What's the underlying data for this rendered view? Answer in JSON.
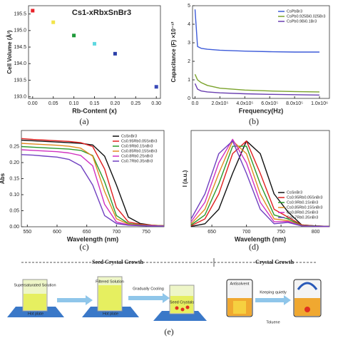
{
  "chart_data": [
    {
      "type": "scatter",
      "title": "Cs1-xRbxSnBr3",
      "xlabel": "Rb-Content (x)",
      "ylabel": "Cell Volume (Å³)",
      "x": [
        0.0,
        0.05,
        0.1,
        0.15,
        0.2,
        0.3
      ],
      "values": [
        195.6,
        195.25,
        194.85,
        194.6,
        194.3,
        193.3
      ],
      "colors": [
        "#e8232a",
        "#f2e44a",
        "#1f9a3a",
        "#5fd8e0",
        "#2a3fa8",
        "#3a4ab8"
      ],
      "xlim": [
        -0.01,
        0.31
      ],
      "ylim": [
        192.95,
        195.75
      ],
      "xticks": [
        {
          "value": 0,
          "label": "0.00"
        },
        0.05,
        {
          "value": 0.1,
          "label": "0.10"
        },
        0.15,
        {
          "value": 0.2,
          "label": "0.20"
        },
        0.25,
        {
          "value": 0.3,
          "label": "0.30"
        }
      ],
      "yticks": [
        {
          "value": 193,
          "label": "193.0"
        },
        193.5,
        {
          "value": 194,
          "label": "194.0"
        },
        194.5,
        {
          "value": 195,
          "label": "195.0"
        },
        195.5
      ]
    },
    {
      "type": "line",
      "xlabel": "Frequency(Hz)",
      "ylabel": "Capacitance (F) ×10⁻¹²",
      "legend": "upper right",
      "x": [
        0,
        20000,
        50000,
        100000,
        200000,
        400000,
        600000,
        800000,
        1000000
      ],
      "series": [
        {
          "name": "CsPbBr3",
          "color": "#3d5bd9",
          "values": [
            4.8,
            2.8,
            2.7,
            2.65,
            2.6,
            2.55,
            2.52,
            2.5,
            2.5
          ]
        },
        {
          "name": "CsPb0.925Bi0.025Br3",
          "color": "#7aa22a",
          "values": [
            1.3,
            1.0,
            0.85,
            0.7,
            0.55,
            0.45,
            0.4,
            0.37,
            0.35
          ]
        },
        {
          "name": "CsPb0.9Bi0.1Br3",
          "color": "#6a3fb0",
          "values": [
            0.8,
            0.5,
            0.4,
            0.35,
            0.3,
            0.25,
            0.22,
            0.2,
            0.18
          ]
        }
      ],
      "xlim": [
        -20000,
        1080000
      ],
      "ylim": [
        0,
        5
      ],
      "xticks": [
        {
          "value": 0,
          "label": "0.0"
        },
        {
          "value": 200000,
          "label": "2.0x10⁵"
        },
        {
          "value": 400000,
          "label": "4.0x10⁵"
        },
        {
          "value": 600000,
          "label": "6.0x10⁵"
        },
        {
          "value": 800000,
          "label": "8.0x10⁵"
        },
        {
          "value": 1000000,
          "label": "1.0x10⁶"
        }
      ],
      "yticks": [
        0,
        1,
        2,
        3,
        4,
        5
      ]
    },
    {
      "type": "line",
      "xlabel": "Wavelength (nm)",
      "ylabel": "Abs",
      "legend": "upper right",
      "x": [
        540,
        560,
        580,
        600,
        620,
        640,
        660,
        680,
        700,
        720,
        740,
        760,
        780
      ],
      "series": [
        {
          "name": "CsSnBr3",
          "color": "#111111",
          "values": [
            0.27,
            0.268,
            0.266,
            0.264,
            0.262,
            0.26,
            0.255,
            0.22,
            0.13,
            0.03,
            0.01,
            0.005,
            0.003
          ]
        },
        {
          "name": "Cs0.95Rb0.05SnBr3",
          "color": "#e02020",
          "values": [
            0.275,
            0.272,
            0.27,
            0.268,
            0.266,
            0.262,
            0.25,
            0.18,
            0.06,
            0.015,
            0.008,
            0.005,
            0.003
          ]
        },
        {
          "name": "Cs0.9Rb0.1SnBr3",
          "color": "#2a9a2a",
          "values": [
            0.25,
            0.248,
            0.246,
            0.244,
            0.242,
            0.238,
            0.222,
            0.14,
            0.035,
            0.01,
            0.006,
            0.004,
            0.003
          ]
        },
        {
          "name": "Cs0.85Rb0.15SnBr3",
          "color": "#e08a20",
          "values": [
            0.26,
            0.258,
            0.256,
            0.254,
            0.251,
            0.245,
            0.22,
            0.11,
            0.025,
            0.008,
            0.005,
            0.004,
            0.003
          ]
        },
        {
          "name": "Cs0.8Rb0.2SnBr3",
          "color": "#d030c0",
          "values": [
            0.24,
            0.238,
            0.236,
            0.234,
            0.23,
            0.222,
            0.19,
            0.07,
            0.015,
            0.006,
            0.004,
            0.003,
            0.002
          ]
        },
        {
          "name": "Cs0.7Rb0.3SnBr3",
          "color": "#7040c0",
          "values": [
            0.225,
            0.223,
            0.22,
            0.217,
            0.21,
            0.19,
            0.13,
            0.035,
            0.01,
            0.005,
            0.003,
            0.002,
            0.002
          ]
        }
      ],
      "xlim": [
        540,
        780
      ],
      "ylim": [
        0,
        0.3
      ],
      "xticks": [
        550,
        600,
        650,
        700,
        750
      ],
      "yticks": [
        {
          "value": 0,
          "label": "0.00"
        },
        0.05,
        {
          "value": 0.1,
          "label": "0.10"
        },
        0.15,
        {
          "value": 0.2,
          "label": "0.20"
        },
        0.25
      ]
    },
    {
      "type": "line",
      "xlabel": "Wavelength (nm)",
      "ylabel": "I (a.u.)",
      "legend": "lower right",
      "x": [
        620,
        640,
        660,
        680,
        700,
        720,
        740,
        760,
        780,
        800,
        820
      ],
      "series": [
        {
          "name": "CsSnBr3",
          "color": "#111111",
          "values": [
            0.003,
            0.034,
            0.2,
            0.61,
            0.98,
            0.835,
            0.375,
            0.17,
            0.02,
            0.01,
            0.005
          ]
        },
        {
          "name": "Cs0.95Rb0.05SnBr3",
          "color": "#e02020",
          "values": [
            0.011,
            0.09,
            0.375,
            0.835,
            0.98,
            0.61,
            0.2,
            0.11,
            0.02,
            0.01,
            0.005
          ]
        },
        {
          "name": "Cs0.9Rb0.1SnBr3",
          "color": "#2a9a2a",
          "values": [
            0.02,
            0.135,
            0.49,
            0.92,
            0.92,
            0.49,
            0.135,
            0.09,
            0.015,
            0.008,
            0.004
          ]
        },
        {
          "name": "Cs0.85Rb0.15SnBr3",
          "color": "#e08a20",
          "values": [
            0.034,
            0.2,
            0.61,
            0.98,
            0.835,
            0.375,
            0.09,
            0.07,
            0.012,
            0.006,
            0.003
          ]
        },
        {
          "name": "Cs0.8Rb0.2SnBr3",
          "color": "#d030c0",
          "values": [
            0.056,
            0.28,
            0.73,
            1.0,
            0.73,
            0.28,
            0.056,
            0.06,
            0.01,
            0.005,
            0.003
          ]
        },
        {
          "name": "Cs0.7Rb0.3SnBr3",
          "color": "#7040c0",
          "values": [
            0.09,
            0.375,
            0.835,
            0.98,
            0.61,
            0.2,
            0.034,
            0.05,
            0.01,
            0.005,
            0.003
          ]
        }
      ],
      "xlim": [
        620,
        820
      ],
      "ylim": [
        0,
        1.1
      ],
      "xticks": [
        650,
        700,
        750,
        800
      ]
    }
  ],
  "captions": [
    "(a)",
    "(b)",
    "(c)",
    "(d)",
    "(e)"
  ],
  "diagram": {
    "stages": [
      "Seed Crystal Growth",
      "Crystal Growth"
    ],
    "labels": [
      "Supersaturated Solution",
      "Hot plate",
      "Filtered Solution",
      "Hot plate",
      "Gradually Cooling",
      "Seed Crystals",
      "Antisolvent",
      "Keeping quietly",
      "Toluene"
    ]
  }
}
